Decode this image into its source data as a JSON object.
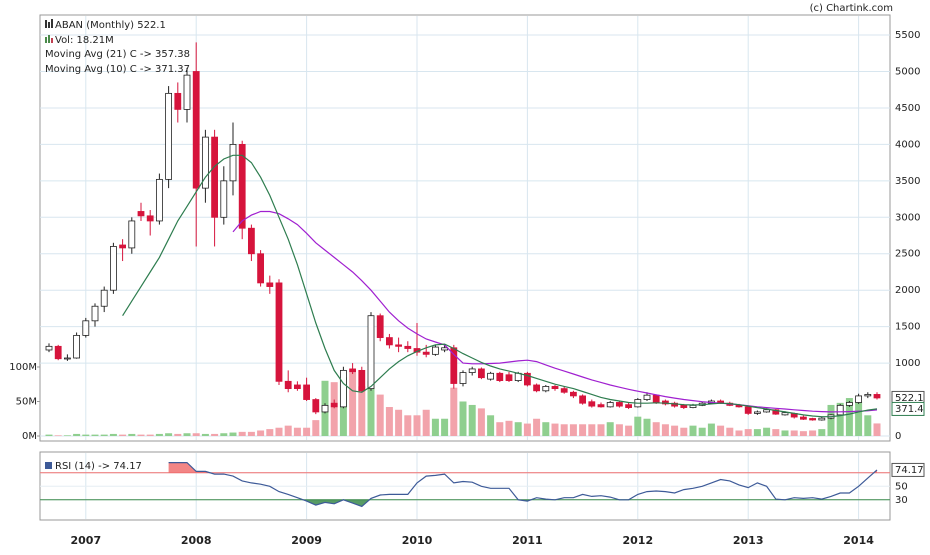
{
  "chart_data": {
    "type": "candlestick",
    "title": "ABAN (Monthly) 522.1",
    "credit": "(c) Chartink.com",
    "price_label": "522.1",
    "ma_label": "371.4",
    "rsi_label": "74.17",
    "categories": [
      null,
      null,
      null,
      null,
      "2007",
      null,
      null,
      null,
      null,
      null,
      null,
      null,
      null,
      null,
      null,
      null,
      "2008",
      null,
      null,
      null,
      null,
      null,
      null,
      null,
      null,
      null,
      null,
      null,
      "2009",
      null,
      null,
      null,
      null,
      null,
      null,
      null,
      null,
      null,
      null,
      null,
      "2010",
      null,
      null,
      null,
      null,
      null,
      null,
      null,
      null,
      null,
      null,
      null,
      "2011",
      null,
      null,
      null,
      null,
      null,
      null,
      null,
      null,
      null,
      null,
      null,
      "2012",
      null,
      null,
      null,
      null,
      null,
      null,
      null,
      null,
      null,
      null,
      null,
      "2013",
      null,
      null,
      null,
      null,
      null,
      null,
      null,
      null,
      null,
      null,
      null,
      "2014",
      null,
      null
    ],
    "open": [
      1180,
      1230,
      1060,
      1070,
      1380,
      1580,
      1780,
      2000,
      2620,
      2580,
      3080,
      3020,
      2950,
      3520,
      4700,
      4480,
      5000,
      3400,
      4100,
      3000,
      3500,
      4000,
      2850,
      2500,
      2100,
      2100,
      750,
      700,
      700,
      500,
      330,
      450,
      400,
      920,
      900,
      650,
      1650,
      1350,
      1250,
      1230,
      1200,
      1150,
      1120,
      1180,
      1210,
      720,
      870,
      920,
      780,
      860,
      840,
      760,
      860,
      700,
      620,
      680,
      650,
      600,
      550,
      470,
      430,
      400,
      460,
      430,
      400,
      500,
      560,
      480,
      450,
      420,
      390,
      420,
      450,
      480,
      450,
      420,
      400,
      310,
      330,
      360,
      290,
      310,
      260,
      240,
      220,
      245,
      290,
      420,
      460,
      550,
      570
    ],
    "high": [
      1270,
      1250,
      1120,
      1420,
      1620,
      1820,
      2050,
      2650,
      2700,
      3000,
      3200,
      3100,
      3600,
      4800,
      4850,
      5050,
      5400,
      4200,
      4200,
      3700,
      4300,
      4050,
      2900,
      2550,
      2200,
      2150,
      900,
      750,
      800,
      520,
      450,
      500,
      950,
      1000,
      950,
      1700,
      1680,
      1400,
      1350,
      1300,
      1550,
      1250,
      1250,
      1260,
      1250,
      900,
      950,
      940,
      880,
      880,
      880,
      880,
      880,
      720,
      700,
      700,
      680,
      620,
      570,
      500,
      460,
      480,
      480,
      460,
      520,
      600,
      570,
      500,
      470,
      440,
      440,
      470,
      500,
      500,
      470,
      440,
      410,
      350,
      380,
      370,
      340,
      320,
      280,
      250,
      260,
      300,
      440,
      480,
      580,
      600,
      600
    ],
    "low": [
      1150,
      1040,
      1030,
      1060,
      1350,
      1500,
      1700,
      1950,
      2400,
      2500,
      2950,
      2750,
      2900,
      3400,
      4300,
      4300,
      2600,
      3200,
      2600,
      2900,
      3300,
      2700,
      2400,
      2050,
      1950,
      700,
      600,
      620,
      480,
      300,
      310,
      380,
      380,
      850,
      600,
      620,
      1300,
      1200,
      1150,
      1150,
      1100,
      1080,
      1100,
      1150,
      650,
      680,
      830,
      780,
      760,
      740,
      740,
      740,
      680,
      600,
      600,
      620,
      580,
      520,
      430,
      390,
      390,
      390,
      390,
      370,
      390,
      480,
      440,
      420,
      390,
      370,
      380,
      410,
      440,
      440,
      410,
      390,
      290,
      290,
      320,
      290,
      280,
      240,
      220,
      210,
      210,
      230,
      280,
      400,
      440,
      520,
      500
    ],
    "close": [
      1230,
      1060,
      1070,
      1380,
      1580,
      1780,
      2000,
      2600,
      2580,
      2950,
      3020,
      2950,
      3520,
      4700,
      4480,
      4950,
      3400,
      4100,
      3000,
      3500,
      4000,
      2850,
      2500,
      2100,
      2050,
      750,
      650,
      650,
      500,
      330,
      420,
      400,
      900,
      880,
      620,
      1650,
      1350,
      1250,
      1230,
      1200,
      1150,
      1120,
      1220,
      1210,
      720,
      870,
      920,
      800,
      860,
      760,
      760,
      860,
      700,
      620,
      680,
      650,
      600,
      550,
      450,
      410,
      400,
      460,
      410,
      390,
      500,
      560,
      460,
      440,
      410,
      390,
      420,
      450,
      480,
      450,
      420,
      400,
      310,
      330,
      360,
      300,
      320,
      260,
      230,
      220,
      245,
      290,
      420,
      460,
      550,
      570,
      522.1
    ],
    "up_color": "#ffffff",
    "down_color": "#d6143c",
    "ylim": [
      0,
      5775
    ],
    "yticks": [
      0,
      1000,
      1500,
      2000,
      2500,
      3000,
      3500,
      4000,
      4500,
      5000,
      5500
    ],
    "grid": true,
    "volume": {
      "name": "Vol: 18.21M",
      "up_color": "#8fcf8f",
      "down_color": "#f2a3ab",
      "ylim": [
        0,
        610
      ],
      "yticks": [
        {
          "value": 0,
          "label": "0M"
        },
        {
          "value": 50,
          "label": "50M"
        },
        {
          "value": 100,
          "label": "100M"
        }
      ],
      "values": [
        2,
        1,
        1,
        3,
        2,
        2,
        2,
        3,
        2,
        3,
        2,
        2,
        3,
        4,
        3,
        4,
        4,
        3,
        3,
        4,
        5,
        6,
        6,
        8,
        10,
        12,
        15,
        12,
        12,
        23,
        80,
        78,
        85,
        92,
        72,
        80,
        60,
        42,
        38,
        30,
        30,
        38,
        25,
        25,
        70,
        50,
        45,
        40,
        30,
        20,
        22,
        20,
        18,
        25,
        20,
        18,
        17,
        17,
        17,
        17,
        17,
        20,
        17,
        15,
        28,
        25,
        20,
        17,
        15,
        12,
        15,
        12,
        18,
        15,
        12,
        8,
        10,
        10,
        12,
        10,
        8,
        8,
        7,
        8,
        10,
        45,
        48,
        55,
        50,
        30,
        18.21
      ]
    },
    "series": [
      {
        "name": "Moving Avg (21) C -> 357.38",
        "color": "#a020d0",
        "values": [
          null,
          null,
          null,
          null,
          null,
          null,
          null,
          null,
          null,
          null,
          null,
          null,
          null,
          null,
          null,
          null,
          null,
          null,
          null,
          null,
          2800,
          2950,
          3030,
          3080,
          3080,
          3050,
          2980,
          2900,
          2780,
          2650,
          2550,
          2450,
          2350,
          2250,
          2130,
          2000,
          1850,
          1700,
          1580,
          1480,
          1400,
          1330,
          1290,
          1250,
          1120,
          1000,
          990,
          990,
          995,
          1000,
          1015,
          1030,
          1040,
          1020,
          975,
          930,
          890,
          850,
          810,
          770,
          735,
          700,
          670,
          640,
          615,
          590,
          565,
          540,
          520,
          500,
          485,
          470,
          460,
          450,
          440,
          430,
          415,
          400,
          390,
          380,
          370,
          360,
          350,
          340,
          335,
          330,
          332,
          335,
          340,
          345,
          357.38
        ]
      },
      {
        "name": "Moving Avg (10) C -> 371.37",
        "color": "#2e7d4f",
        "values": [
          null,
          null,
          null,
          null,
          null,
          null,
          null,
          null,
          1650,
          1850,
          2050,
          2250,
          2450,
          2700,
          2950,
          3150,
          3350,
          3550,
          3700,
          3800,
          3850,
          3850,
          3750,
          3550,
          3300,
          3000,
          2700,
          2350,
          1950,
          1550,
          1200,
          900,
          720,
          620,
          600,
          680,
          800,
          920,
          1020,
          1100,
          1160,
          1210,
          1250,
          1260,
          1200,
          1130,
          1070,
          1010,
          960,
          920,
          890,
          860,
          830,
          790,
          750,
          710,
          680,
          650,
          610,
          570,
          530,
          500,
          480,
          460,
          450,
          450,
          455,
          450,
          440,
          430,
          425,
          430,
          440,
          450,
          445,
          430,
          410,
          390,
          370,
          350,
          330,
          310,
          290,
          275,
          265,
          265,
          280,
          300,
          330,
          355,
          371.37
        ]
      }
    ],
    "rsi": {
      "name": "RSI (14) -> 74.17",
      "color": "#3d5a98",
      "ylim": [
        0,
        100
      ],
      "yticks": [
        30,
        50,
        70
      ],
      "overbought": 70,
      "oversold": 30,
      "overbought_color": "#f07070",
      "oversold_color": "#3a8a4a",
      "values": [
        null,
        null,
        null,
        null,
        null,
        null,
        null,
        null,
        null,
        null,
        null,
        null,
        null,
        85,
        85,
        85,
        72,
        72,
        68,
        68,
        65,
        58,
        55,
        53,
        50,
        42,
        38,
        33,
        28,
        22,
        26,
        24,
        30,
        25,
        20,
        32,
        37,
        38,
        38,
        38,
        55,
        65,
        66,
        68,
        55,
        57,
        56,
        50,
        47,
        47,
        47,
        30,
        28,
        33,
        31,
        30,
        33,
        33,
        38,
        35,
        36,
        34,
        30,
        30,
        38,
        42,
        43,
        42,
        40,
        45,
        47,
        50,
        55,
        60,
        58,
        52,
        48,
        55,
        50,
        31,
        30,
        33,
        32,
        33,
        31,
        35,
        40,
        40,
        50,
        62,
        74.17
      ]
    }
  }
}
